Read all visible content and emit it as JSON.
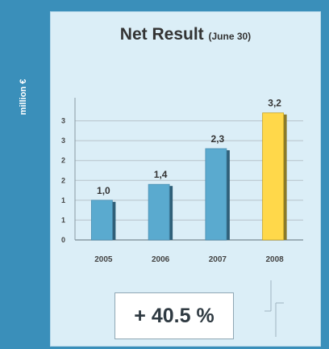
{
  "side_label": "million €",
  "title": "Net Result",
  "title_sub": "(June 30)",
  "result": "+ 40.5 %",
  "colors": {
    "background": "#3a8fba",
    "panel": "#dbeef7",
    "bar": "#5aaacf",
    "bar_highlight": "#ffd84a"
  },
  "chart_data": {
    "type": "bar",
    "categories": [
      "2005",
      "2006",
      "2007",
      "2008"
    ],
    "values": [
      1.0,
      1.4,
      2.3,
      3.2
    ],
    "value_labels": [
      "1,0",
      "1,4",
      "2,3",
      "3,2"
    ],
    "highlight_index": 3,
    "ylim": [
      0,
      3.5
    ],
    "y_ticks": [
      0,
      0.5,
      1,
      1.5,
      2,
      2.5,
      3
    ],
    "y_tick_labels": [
      "0",
      "1",
      "1",
      "2",
      "2",
      "3",
      "3"
    ],
    "xlabel": "",
    "ylabel": "million €",
    "grid": true
  }
}
